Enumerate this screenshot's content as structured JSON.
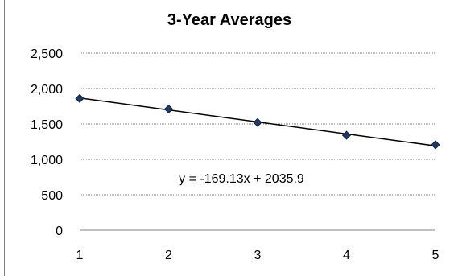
{
  "chart_data": {
    "type": "scatter",
    "title": "3-Year Averages",
    "xlabel": "",
    "ylabel": "",
    "x": [
      1,
      2,
      3,
      4,
      5
    ],
    "series": [
      {
        "values": [
          1860,
          1710,
          1520,
          1340,
          1205
        ]
      }
    ],
    "trendline": {
      "slope": -169.13,
      "intercept": 2035.9,
      "equation": "y = -169.13x + 2035.9"
    },
    "xlim": [
      1,
      5
    ],
    "ylim": [
      0,
      2500
    ],
    "xticks": [
      "1",
      "2",
      "3",
      "4",
      "5"
    ],
    "yticks": [
      "0",
      "500",
      "1,000",
      "1,500",
      "2,000",
      "2,500"
    ],
    "grid": "horizontal-dotted",
    "colors": {
      "marker": "#1f3864",
      "line": "#000000",
      "grid": "#808080"
    }
  }
}
